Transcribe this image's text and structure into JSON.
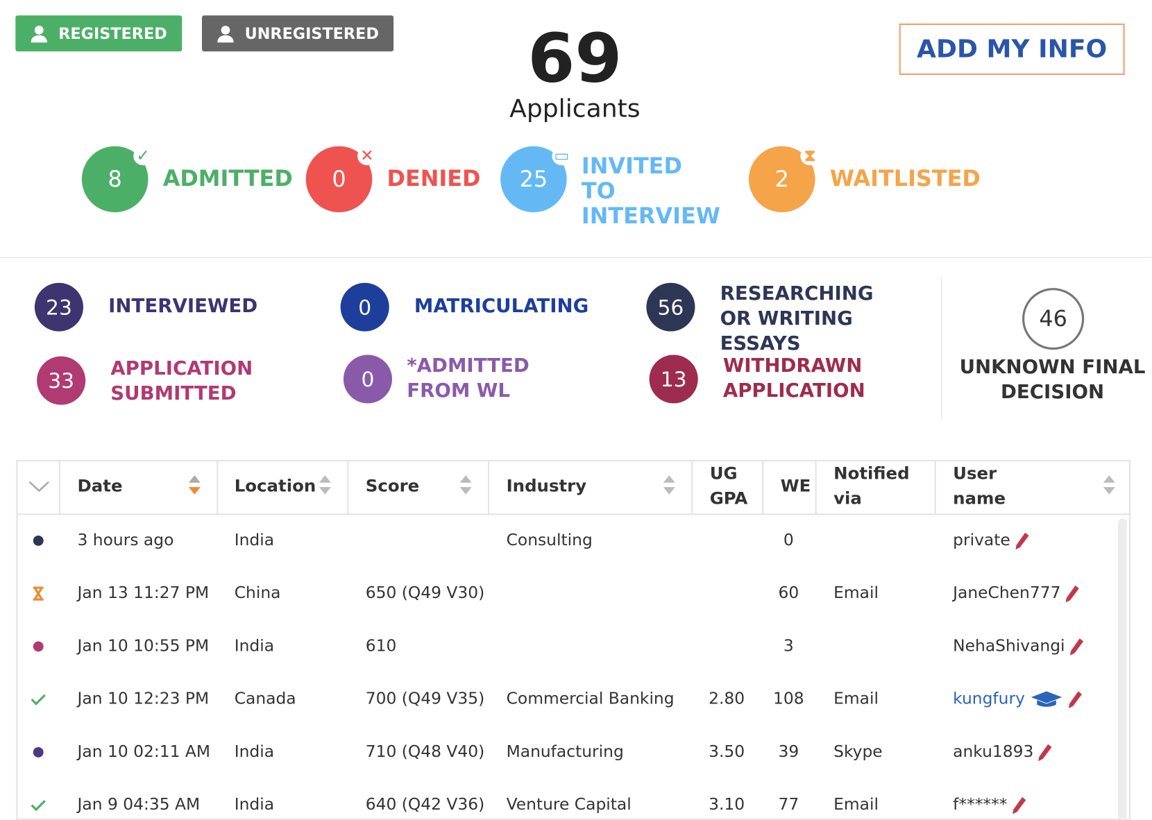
{
  "buttons": {
    "registered": "REGISTERED",
    "unregistered": "UNREGISTERED",
    "add_info": "ADD MY INFO"
  },
  "summary": {
    "count": 69,
    "label": "Applicants"
  },
  "main_status": [
    {
      "count": 8,
      "label": "ADMITTED"
    },
    {
      "count": 0,
      "label": "DENIED"
    },
    {
      "count": 25,
      "label": "INVITED TO INTERVIEW"
    },
    {
      "count": 2,
      "label": "WAITLISTED"
    }
  ],
  "other_status": [
    {
      "count": 23,
      "label": "INTERVIEWED"
    },
    {
      "count": 0,
      "label": "MATRICULATING"
    },
    {
      "count": 56,
      "label": "RESEARCHING OR WRITING ESSAYS"
    },
    {
      "count": 33,
      "label": "APPLICATION SUBMITTED"
    },
    {
      "count": 0,
      "label": "*ADMITTED FROM WL"
    },
    {
      "count": 13,
      "label": "WITHDRAWN APPLICATION"
    }
  ],
  "unknown": {
    "count": 46,
    "label": "UNKNOWN FINAL DECISION"
  },
  "table": {
    "headers": [
      "Date",
      "Location",
      "Score",
      "Industry",
      "UG GPA",
      "WE",
      "Notified via",
      "User name"
    ],
    "rows": [
      [
        "3 hours ago",
        "India",
        "",
        "Consulting",
        "",
        "0",
        "",
        "private"
      ],
      [
        "Jan 13 11:27 PM",
        "China",
        "650 (Q49 V30)",
        "",
        "",
        "60",
        "Email",
        "JaneChen777"
      ],
      [
        "Jan 10 10:55 PM",
        "India",
        "610",
        "",
        "",
        "3",
        "",
        "NehaShivangi"
      ],
      [
        "Jan 10 12:23 PM",
        "Canada",
        "700 (Q49 V35)",
        "Commercial Banking",
        "2.80",
        "108",
        "Email",
        "kungfury"
      ],
      [
        "Jan 10 02:11 AM",
        "India",
        "710 (Q48 V40)",
        "Manufacturing",
        "3.50",
        "39",
        "Skype",
        "anku1893"
      ],
      [
        "Jan 9 04:35 AM",
        "India",
        "640 (Q42 V36)",
        "Venture Capital",
        "3.10",
        "77",
        "Email",
        "f******"
      ]
    ]
  }
}
